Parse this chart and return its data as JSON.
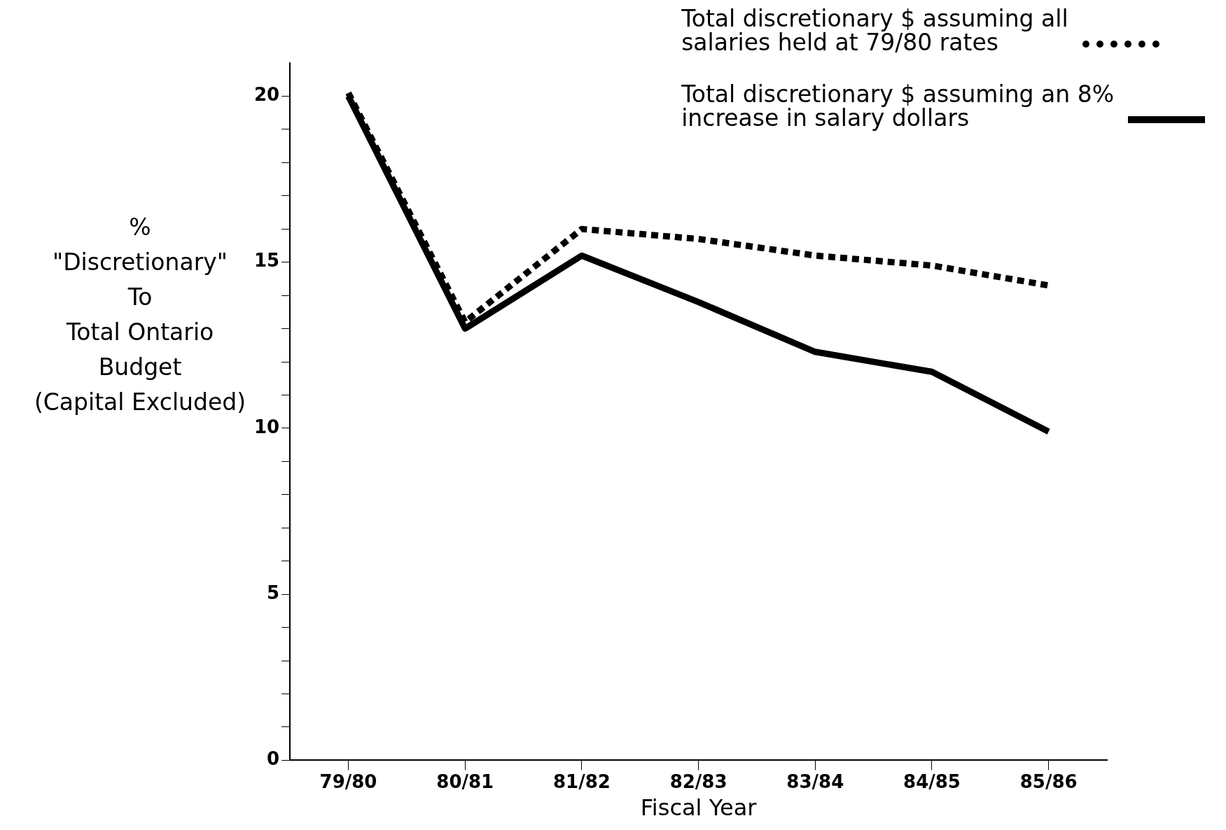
{
  "chart_data": {
    "type": "line",
    "xlabel": "Fiscal Year",
    "ylabel": "%\n\"Discretionary\"\nTo\nTotal Ontario\nBudget\n(Capital Excluded)",
    "categories": [
      "79/80",
      "80/81",
      "81/82",
      "82/83",
      "83/84",
      "84/85",
      "85/86"
    ],
    "series": [
      {
        "name": "Total discretionary $ assuming all\nsalaries held at 79/80 rates",
        "color": "#000000",
        "line_style": "dotted",
        "values": [
          20.1,
          13.2,
          16.0,
          15.7,
          15.2,
          14.9,
          14.3
        ]
      },
      {
        "name": "Total discretionary $ assuming an 8%\nincrease in salary dollars",
        "color": "#000000",
        "line_style": "solid",
        "values": [
          20.0,
          13.0,
          15.2,
          13.8,
          12.3,
          11.7,
          9.9
        ]
      }
    ],
    "ylim": [
      0,
      21
    ],
    "yticks": [
      0,
      {
        "value": 1,
        "label": null
      },
      {
        "value": 2,
        "label": null
      },
      {
        "value": 3,
        "label": null
      },
      {
        "value": 4,
        "label": null
      },
      5,
      {
        "value": 6,
        "label": null
      },
      {
        "value": 7,
        "label": null
      },
      {
        "value": 8,
        "label": null
      },
      {
        "value": 9,
        "label": null
      },
      10,
      {
        "value": 11,
        "label": null
      },
      {
        "value": 12,
        "label": null
      },
      {
        "value": 13,
        "label": null
      },
      {
        "value": 14,
        "label": null
      },
      15,
      {
        "value": 16,
        "label": null
      },
      {
        "value": 17,
        "label": null
      },
      {
        "value": 18,
        "label": null
      },
      {
        "value": 19,
        "label": null
      },
      20
    ],
    "grid": false,
    "legend": "top right",
    "marker": "none"
  }
}
